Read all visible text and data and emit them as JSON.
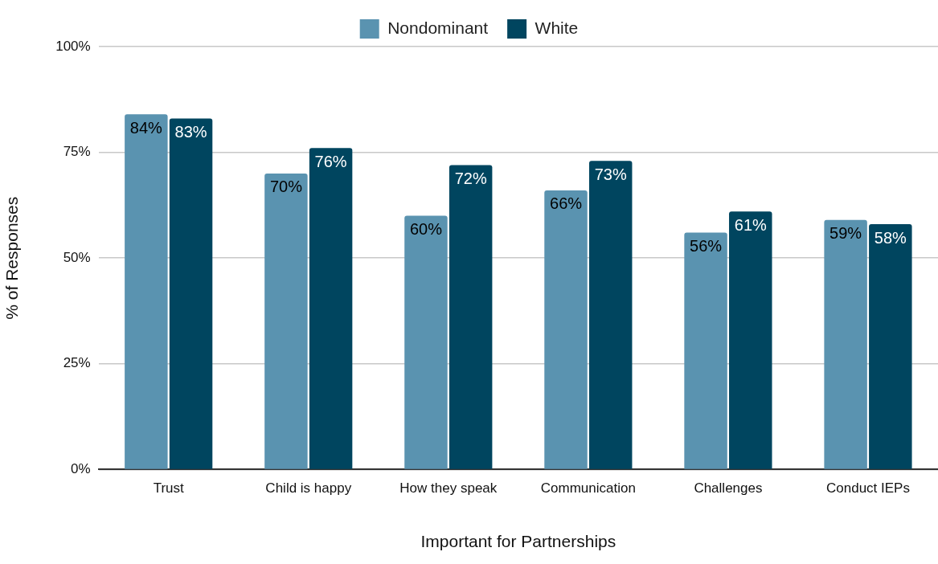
{
  "chart_data": {
    "type": "bar",
    "xlabel": "Important for Partnerships",
    "ylabel": "% of Responses",
    "categories": [
      "Trust",
      "Child is happy",
      "How they speak",
      "Communication",
      "Challenges",
      "Conduct IEPs"
    ],
    "series": [
      {
        "name": "Nondominant",
        "color": "#5a93b0",
        "values": [
          84,
          70,
          60,
          66,
          56,
          59
        ],
        "value_labels": [
          "84%",
          "70%",
          "60%",
          "66%",
          "56%",
          "59%"
        ]
      },
      {
        "name": "White",
        "color": "#00455f",
        "values": [
          83,
          76,
          72,
          73,
          61,
          58
        ],
        "value_labels": [
          "83%",
          "76%",
          "72%",
          "73%",
          "61%",
          "58%"
        ]
      }
    ],
    "ylim": [
      0,
      100
    ],
    "yticks": [
      {
        "value": 0,
        "label": "0%"
      },
      {
        "value": 25,
        "label": "25%"
      },
      {
        "value": 50,
        "label": "50%"
      },
      {
        "value": 75,
        "label": "75%"
      },
      {
        "value": 100,
        "label": "100%"
      }
    ],
    "grid": "y",
    "legend": "top"
  }
}
